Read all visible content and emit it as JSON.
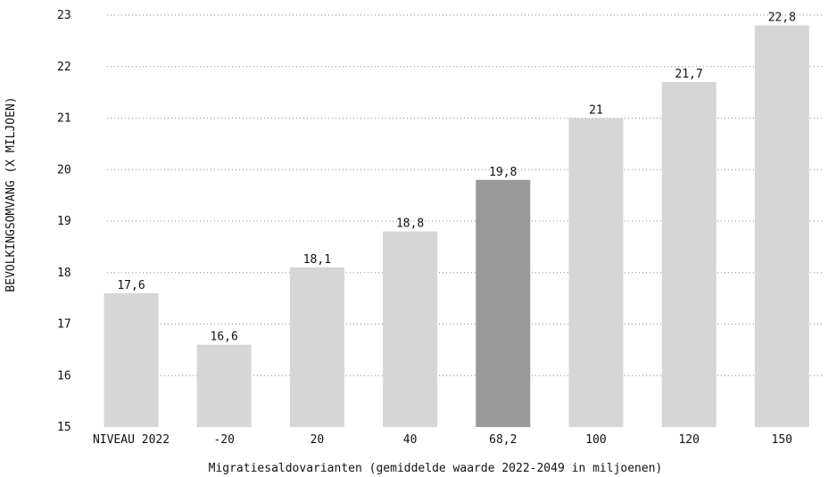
{
  "chart_data": {
    "type": "bar",
    "title": "",
    "xlabel": "Migratiesaldovarianten (gemiddelde waarde 2022-2049 in miljoenen)",
    "ylabel": "BEVOLKINGSOMVANG (X MILJOEN)",
    "ylim": [
      15,
      23
    ],
    "yticks": [
      "15",
      "16",
      "17",
      "18",
      "19",
      "20",
      "21",
      "22",
      "23"
    ],
    "grid": "horizontal dotted",
    "legend": "none",
    "categories": [
      "NIVEAU 2022",
      "-20",
      "20",
      "40",
      "68,2",
      "100",
      "120",
      "150"
    ],
    "values": [
      17.6,
      16.6,
      18.1,
      18.8,
      19.8,
      21.0,
      21.7,
      22.8
    ],
    "value_labels": [
      "17,6",
      "16,6",
      "18,1",
      "18,8",
      "19,8",
      "21",
      "21,7",
      "22,8"
    ],
    "highlight_index": 4,
    "colors": {
      "bar": "#d6d6d6",
      "highlight": "#999999",
      "grid": "#8a8a8a",
      "text": "#111111"
    }
  }
}
